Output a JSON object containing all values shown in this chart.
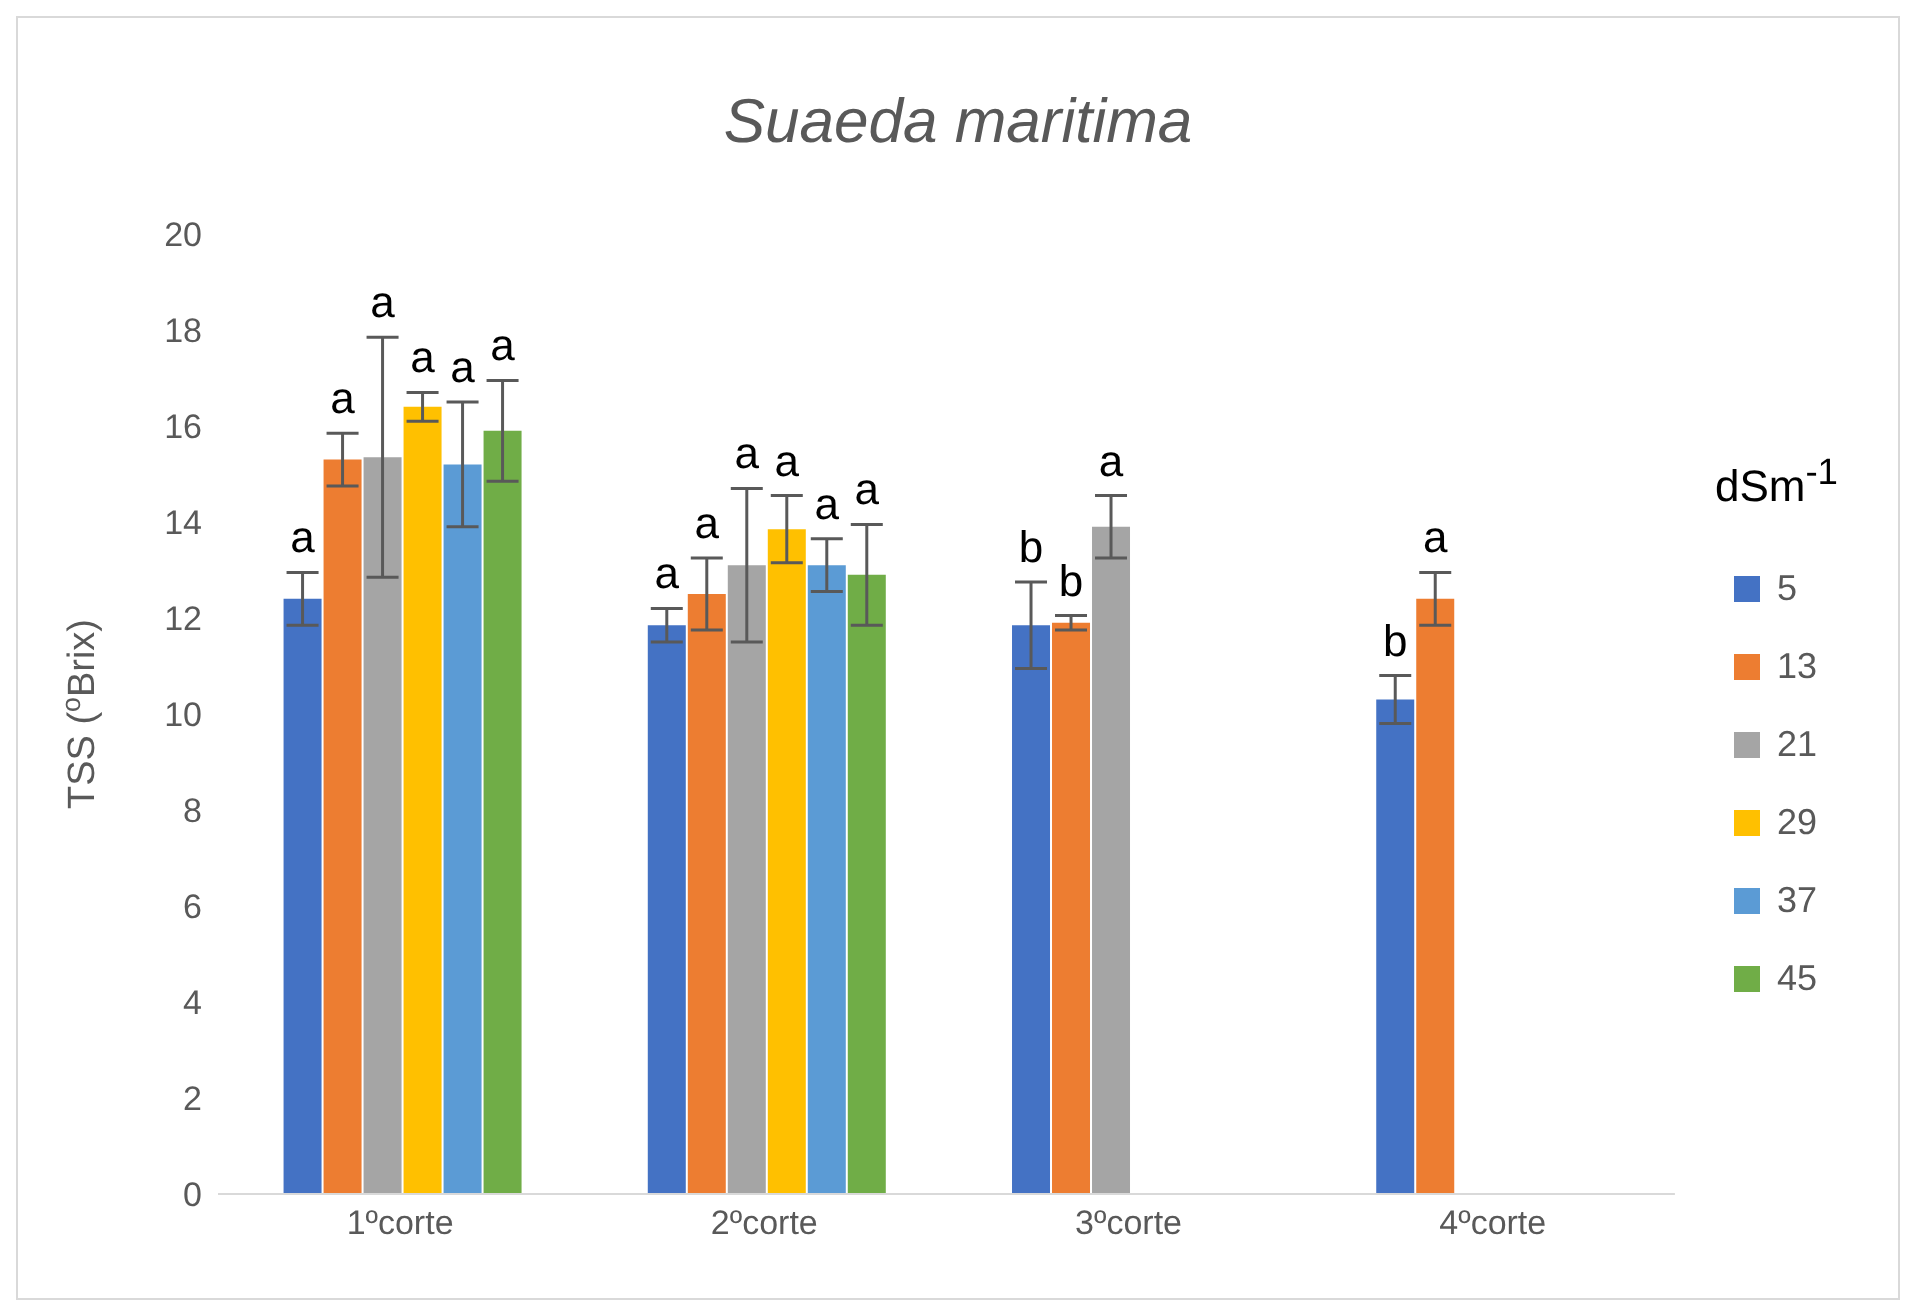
{
  "chart_data": {
    "type": "bar",
    "title": "Suaeda maritima",
    "ylabel": "TSS ($^{o}$Brix)",
    "legend_title": "dSm$^{-1}$",
    "legend": "right",
    "categories": [
      "1ºcorte",
      "2ºcorte",
      "3ºcorte",
      "4ºcorte"
    ],
    "ylim": [
      0,
      20
    ],
    "yticks": [
      0,
      2,
      4,
      6,
      8,
      10,
      12,
      14,
      16,
      18,
      20
    ],
    "series": [
      {
        "name": "5",
        "color": "#4472c4",
        "values": [
          12.4,
          11.85,
          11.85,
          10.3
        ],
        "errors": [
          0.55,
          0.35,
          0.9,
          0.5
        ],
        "value_labels": [
          "a",
          "a",
          "b",
          "b"
        ]
      },
      {
        "name": "13",
        "color": "#ed7d31",
        "values": [
          15.3,
          12.5,
          11.9,
          12.4
        ],
        "errors": [
          0.55,
          0.75,
          0.15,
          0.55
        ],
        "value_labels": [
          "a",
          "a",
          "b",
          "a"
        ]
      },
      {
        "name": "21",
        "color": "#a5a5a5",
        "values": [
          15.35,
          13.1,
          13.9,
          null
        ],
        "errors": [
          2.5,
          1.6,
          0.65,
          null
        ],
        "value_labels": [
          "a",
          "a",
          "a",
          null
        ]
      },
      {
        "name": "29",
        "color": "#ffc000",
        "values": [
          16.4,
          13.85,
          null,
          null
        ],
        "errors": [
          0.3,
          0.7,
          null,
          null
        ],
        "value_labels": [
          "a",
          "a",
          null,
          null
        ]
      },
      {
        "name": "37",
        "color": "#5b9bd5",
        "values": [
          15.2,
          13.1,
          null,
          null
        ],
        "errors": [
          1.3,
          0.55,
          null,
          null
        ],
        "value_labels": [
          "a",
          "a",
          null,
          null
        ]
      },
      {
        "name": "45",
        "color": "#70ad47",
        "values": [
          15.9,
          12.9,
          null,
          null
        ],
        "errors": [
          1.05,
          1.05,
          null,
          null
        ],
        "value_labels": [
          "a",
          "a",
          null,
          null
        ]
      }
    ]
  }
}
